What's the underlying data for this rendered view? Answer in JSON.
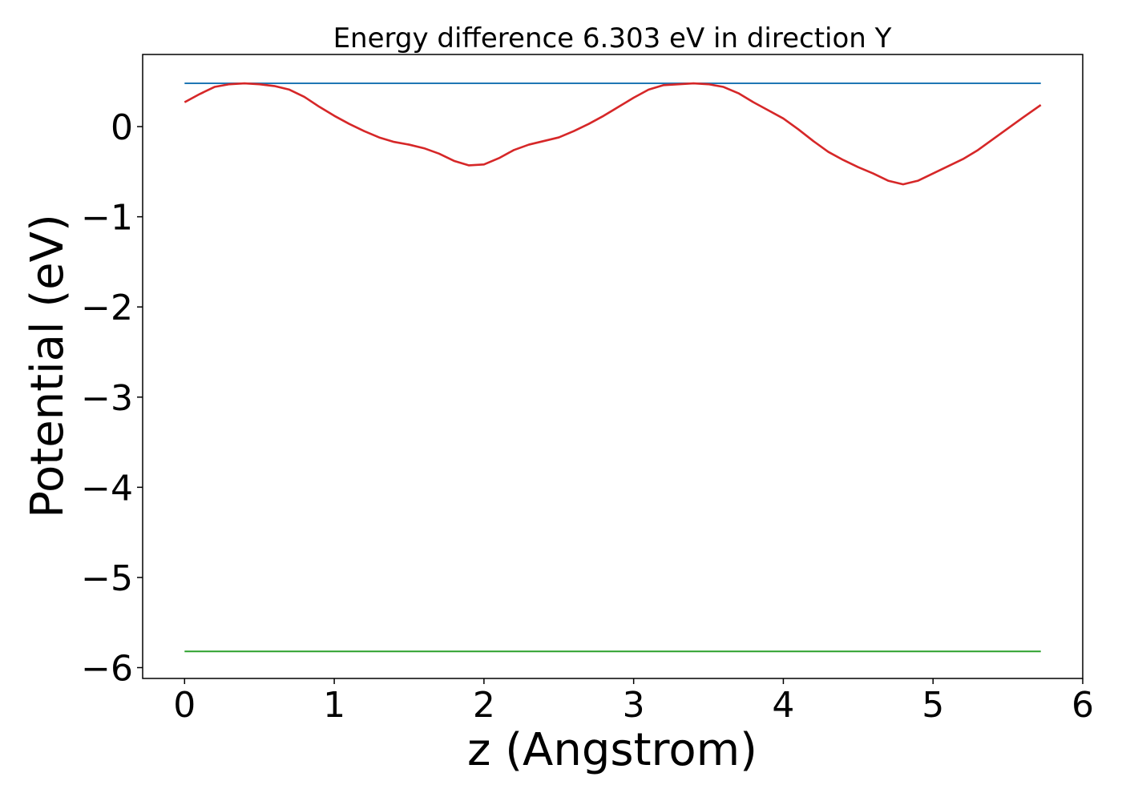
{
  "chart_data": {
    "type": "line",
    "title": "Energy difference 6.303 eV in direction Y",
    "xlabel": "z (Angstrom)",
    "ylabel": "Potential (eV)",
    "xlim": [
      -0.28,
      6.0
    ],
    "ylim": [
      -6.12,
      0.8
    ],
    "xticks": [
      0,
      1,
      2,
      3,
      4,
      5,
      6
    ],
    "xtick_labels": [
      "0",
      "1",
      "2",
      "3",
      "4",
      "5",
      "6"
    ],
    "yticks": [
      0,
      -1,
      -2,
      -3,
      -4,
      -5,
      -6
    ],
    "ytick_labels": [
      "0",
      "−1",
      "−2",
      "−3",
      "−4",
      "−5",
      "−6"
    ],
    "grid": false,
    "series": [
      {
        "color": "#1f77b4",
        "x": [
          0,
          5.72
        ],
        "y": [
          0.48,
          0.48
        ]
      },
      {
        "color": "#2ca02c",
        "x": [
          0,
          5.72
        ],
        "y": [
          -5.82,
          -5.82
        ]
      },
      {
        "color": "#d62728",
        "x": [
          0,
          0.1,
          0.2,
          0.3,
          0.4,
          0.5,
          0.6,
          0.7,
          0.8,
          0.9,
          1.0,
          1.1,
          1.2,
          1.3,
          1.4,
          1.5,
          1.6,
          1.7,
          1.8,
          1.9,
          2.0,
          2.1,
          2.2,
          2.3,
          2.4,
          2.5,
          2.6,
          2.7,
          2.8,
          2.9,
          3.0,
          3.1,
          3.2,
          3.3,
          3.4,
          3.5,
          3.6,
          3.7,
          3.8,
          3.9,
          4.0,
          4.1,
          4.2,
          4.3,
          4.4,
          4.5,
          4.6,
          4.7,
          4.8,
          4.9,
          5.0,
          5.1,
          5.2,
          5.3,
          5.4,
          5.5,
          5.6,
          5.72
        ],
        "y": [
          0.27,
          0.36,
          0.44,
          0.47,
          0.48,
          0.47,
          0.45,
          0.41,
          0.33,
          0.22,
          0.12,
          0.03,
          -0.05,
          -0.12,
          -0.17,
          -0.2,
          -0.24,
          -0.3,
          -0.38,
          -0.43,
          -0.42,
          -0.35,
          -0.26,
          -0.2,
          -0.16,
          -0.12,
          -0.05,
          0.03,
          0.12,
          0.22,
          0.32,
          0.41,
          0.46,
          0.47,
          0.48,
          0.47,
          0.44,
          0.37,
          0.27,
          0.18,
          0.09,
          -0.03,
          -0.16,
          -0.28,
          -0.37,
          -0.45,
          -0.52,
          -0.6,
          -0.64,
          -0.6,
          -0.52,
          -0.44,
          -0.36,
          -0.26,
          -0.14,
          -0.02,
          0.1,
          0.24
        ]
      }
    ]
  }
}
